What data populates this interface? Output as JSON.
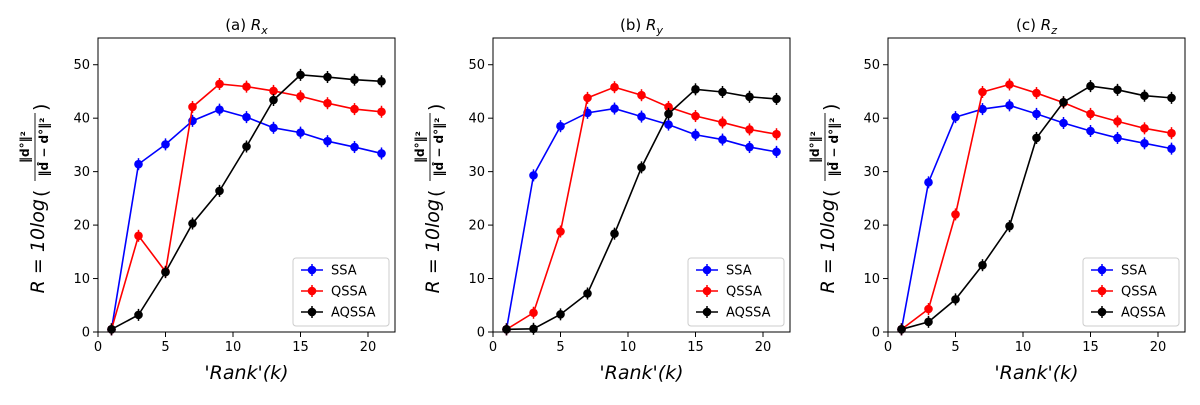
{
  "chart_data": [
    {
      "type": "line",
      "title": "(a) R_x",
      "title_prefix": "(a)",
      "title_var": "R",
      "title_sub": "x",
      "xlabel": "'Rank'(k)",
      "ylabel": "R = 10log(‖d°‖²_F / ‖d̂_j − d°‖²_F)",
      "xlim": [
        0,
        22
      ],
      "ylim": [
        0,
        55
      ],
      "xticks": [
        0,
        5,
        10,
        15,
        20
      ],
      "yticks": [
        0,
        10,
        20,
        30,
        40,
        50
      ],
      "x": [
        1,
        3,
        5,
        7,
        9,
        11,
        13,
        15,
        17,
        19,
        21
      ],
      "legend_position": "lower-right",
      "grid": false,
      "series": [
        {
          "name": "SSA",
          "color": "#0000ff",
          "values": [
            0.5,
            31.4,
            35.1,
            39.5,
            41.6,
            40.2,
            38.2,
            37.3,
            35.7,
            34.6,
            33.4
          ]
        },
        {
          "name": "QSSA",
          "color": "#ff0000",
          "values": [
            0.5,
            18.0,
            11.3,
            42.1,
            46.4,
            45.9,
            45.1,
            44.1,
            42.8,
            41.7,
            41.2
          ]
        },
        {
          "name": "AQSSA",
          "color": "#000000",
          "values": [
            0.5,
            3.2,
            11.2,
            20.3,
            26.4,
            34.7,
            43.4,
            48.1,
            47.7,
            47.2,
            46.9
          ]
        }
      ]
    },
    {
      "type": "line",
      "title": "(b) R_y",
      "title_prefix": "(b)",
      "title_var": "R",
      "title_sub": "y",
      "xlabel": "'Rank'(k)",
      "ylabel": "R = 10log(‖d°‖²_F / ‖d̂_j − d°‖²_F)",
      "xlim": [
        0,
        22
      ],
      "ylim": [
        0,
        55
      ],
      "xticks": [
        0,
        5,
        10,
        15,
        20
      ],
      "yticks": [
        0,
        10,
        20,
        30,
        40,
        50
      ],
      "x": [
        1,
        3,
        5,
        7,
        9,
        11,
        13,
        15,
        17,
        19,
        21
      ],
      "legend_position": "lower-right",
      "grid": false,
      "series": [
        {
          "name": "SSA",
          "color": "#0000ff",
          "values": [
            0.5,
            29.3,
            38.5,
            41.0,
            41.8,
            40.3,
            38.8,
            36.9,
            36.0,
            34.6,
            33.7
          ]
        },
        {
          "name": "QSSA",
          "color": "#ff0000",
          "values": [
            0.5,
            3.6,
            18.8,
            43.8,
            45.8,
            44.3,
            42.1,
            40.4,
            39.2,
            37.9,
            37.0
          ]
        },
        {
          "name": "AQSSA",
          "color": "#000000",
          "values": [
            0.5,
            0.6,
            3.3,
            7.2,
            18.4,
            30.8,
            40.8,
            45.4,
            44.9,
            44.0,
            43.6
          ]
        }
      ]
    },
    {
      "type": "line",
      "title": "(c) R_z",
      "title_prefix": "(c)",
      "title_var": "R",
      "title_sub": "z",
      "xlabel": "'Rank'(k)",
      "ylabel": "R = 10log(‖d°‖²_F / ‖d̂_j − d°‖²_F)",
      "xlim": [
        0,
        22
      ],
      "ylim": [
        0,
        55
      ],
      "xticks": [
        0,
        5,
        10,
        15,
        20
      ],
      "yticks": [
        0,
        10,
        20,
        30,
        40,
        50
      ],
      "x": [
        1,
        3,
        5,
        7,
        9,
        11,
        13,
        15,
        17,
        19,
        21
      ],
      "legend_position": "lower-right",
      "grid": false,
      "series": [
        {
          "name": "SSA",
          "color": "#0000ff",
          "values": [
            0.5,
            28.0,
            40.2,
            41.7,
            42.4,
            40.8,
            39.1,
            37.6,
            36.3,
            35.3,
            34.3
          ]
        },
        {
          "name": "QSSA",
          "color": "#ff0000",
          "values": [
            0.5,
            4.3,
            22.0,
            44.9,
            46.3,
            44.7,
            42.9,
            40.8,
            39.4,
            38.1,
            37.2
          ]
        },
        {
          "name": "AQSSA",
          "color": "#000000",
          "values": [
            0.5,
            1.9,
            6.1,
            12.5,
            19.8,
            36.3,
            43.0,
            46.0,
            45.3,
            44.2,
            43.8
          ]
        }
      ]
    }
  ]
}
